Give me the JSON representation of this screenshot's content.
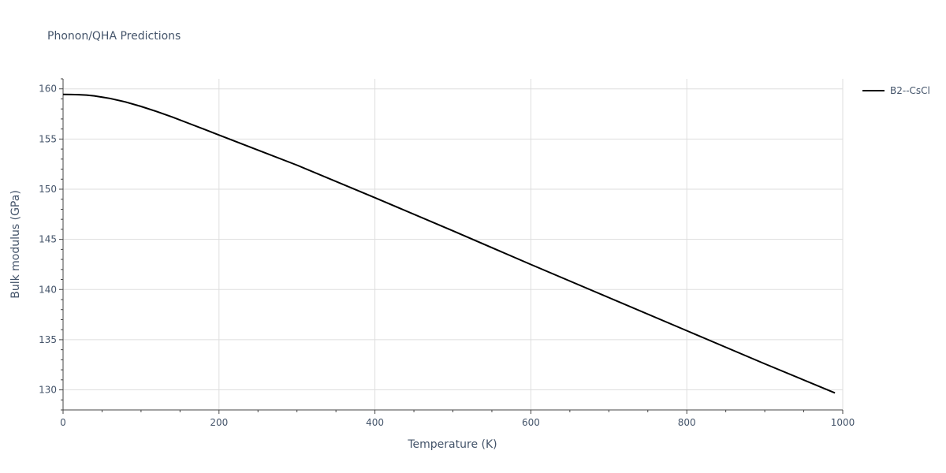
{
  "chart_data": {
    "type": "line",
    "title": "Phonon/QHA Predictions",
    "xlabel": "Temperature (K)",
    "ylabel": "Bulk modulus (GPa)",
    "xlim": [
      0,
      1000
    ],
    "ylim": [
      128,
      161
    ],
    "xticks": [
      0,
      200,
      400,
      600,
      800,
      1000
    ],
    "yticks": [
      130,
      135,
      140,
      145,
      150,
      155,
      160
    ],
    "xtick_labels": [
      "0",
      "200",
      "400",
      "600",
      "800",
      "1000"
    ],
    "ytick_labels": [
      "130",
      "135",
      "140",
      "145",
      "150",
      "155",
      "160"
    ],
    "grid": true,
    "legend_position": "top-right",
    "series": [
      {
        "name": "B2--CsCl",
        "color": "#000000",
        "x": [
          0,
          10,
          20,
          30,
          40,
          60,
          80,
          100,
          120,
          140,
          160,
          180,
          200,
          250,
          300,
          400,
          500,
          600,
          700,
          800,
          900,
          990
        ],
        "y": [
          159.45,
          159.44,
          159.42,
          159.38,
          159.3,
          159.05,
          158.7,
          158.25,
          157.75,
          157.2,
          156.6,
          156.0,
          155.4,
          153.9,
          152.4,
          149.15,
          145.85,
          142.5,
          139.2,
          135.9,
          132.6,
          129.7
        ]
      }
    ]
  }
}
